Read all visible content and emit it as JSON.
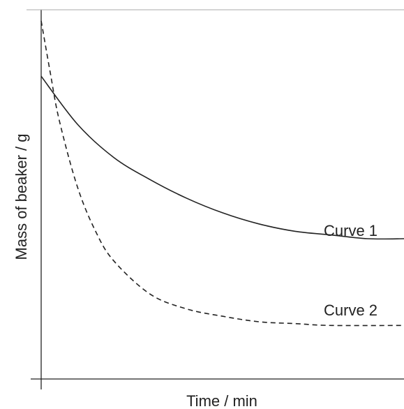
{
  "chart_data": {
    "type": "line",
    "title": "",
    "xlabel": "Time / min",
    "ylabel": "Mass of beaker / g",
    "x_ticks_shown": false,
    "y_ticks_shown": false,
    "grid": false,
    "legend": "none",
    "xlim": [
      0,
      10
    ],
    "ylim": [
      0,
      10
    ],
    "series": [
      {
        "name": "Curve 1",
        "line_style": "solid",
        "color": "#222222",
        "x": [
          0,
          1,
          2,
          3,
          4,
          5,
          6,
          7,
          8,
          9,
          10
        ],
        "y": [
          8.2,
          6.9,
          6.0,
          5.4,
          4.9,
          4.5,
          4.2,
          4.0,
          3.9,
          3.8,
          3.8
        ]
      },
      {
        "name": "Curve 2",
        "line_style": "dashed",
        "color": "#222222",
        "x": [
          0,
          0.25,
          0.5,
          1,
          1.5,
          2,
          3,
          4,
          5,
          6,
          7,
          8,
          10
        ],
        "y": [
          9.7,
          8.3,
          7.0,
          5.2,
          4.0,
          3.2,
          2.3,
          1.9,
          1.7,
          1.55,
          1.5,
          1.45,
          1.45
        ]
      }
    ]
  }
}
